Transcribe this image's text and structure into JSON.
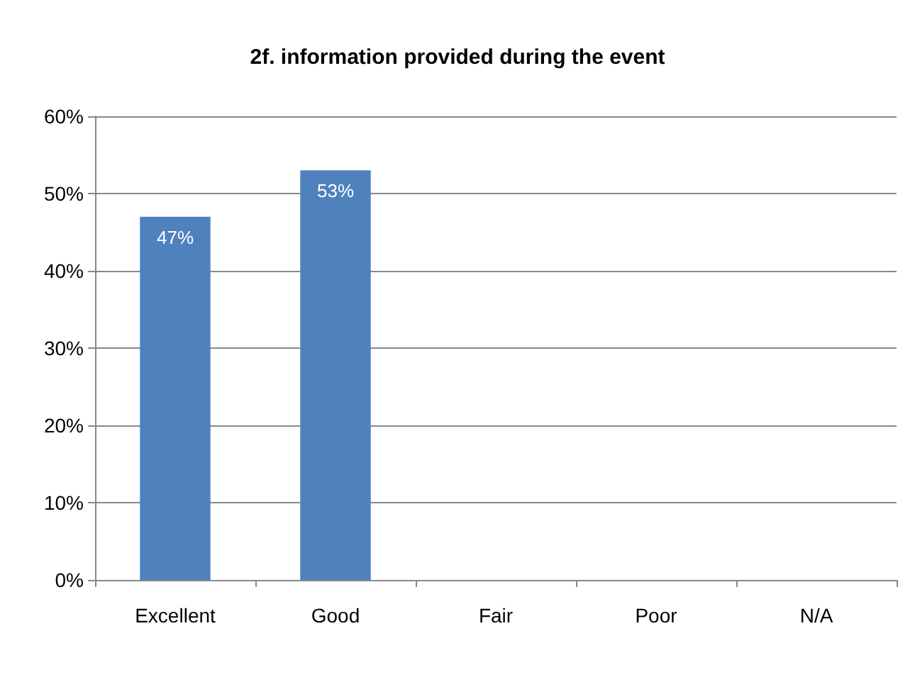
{
  "chart_data": {
    "type": "bar",
    "title": "2f. information provided during the event",
    "categories": [
      "Excellent",
      "Good",
      "Fair",
      "Poor",
      "N/A"
    ],
    "values": [
      47,
      53,
      0,
      0,
      0
    ],
    "value_labels": [
      "47%",
      "53%",
      null,
      null,
      null
    ],
    "color": "#4f81bd",
    "ylim": [
      0,
      60
    ],
    "yticks": [
      {
        "value": 0,
        "label": "0%"
      },
      {
        "value": 10,
        "label": "10%"
      },
      {
        "value": 20,
        "label": "20%"
      },
      {
        "value": 30,
        "label": "30%"
      },
      {
        "value": 40,
        "label": "40%"
      },
      {
        "value": 50,
        "label": "50%"
      },
      {
        "value": 60,
        "label": "60%"
      }
    ],
    "grid": "y"
  }
}
